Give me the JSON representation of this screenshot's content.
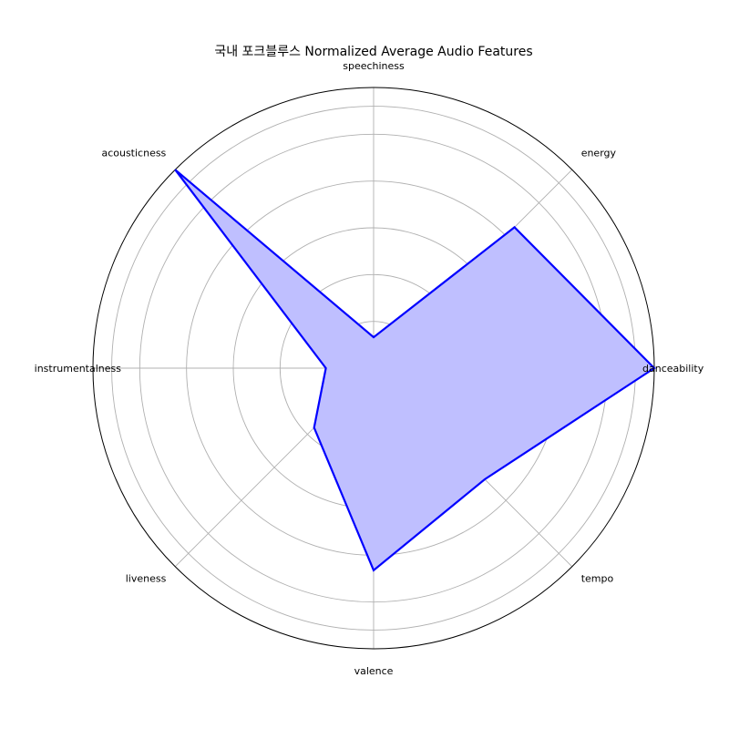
{
  "chart_data": {
    "type": "radar",
    "title": "국내 포크블루스 Normalized Average Audio Features",
    "axes": [
      "danceability",
      "energy",
      "speechiness",
      "acousticness",
      "instrumentalness",
      "liveness",
      "valence",
      "tempo"
    ],
    "values": [
      1.0,
      0.71,
      0.11,
      1.0,
      0.17,
      0.3,
      0.72,
      0.56
    ],
    "rlim": [
      0,
      1
    ],
    "grid": true,
    "series_color": "#0000ff",
    "fill_color": "#bfbfff"
  }
}
